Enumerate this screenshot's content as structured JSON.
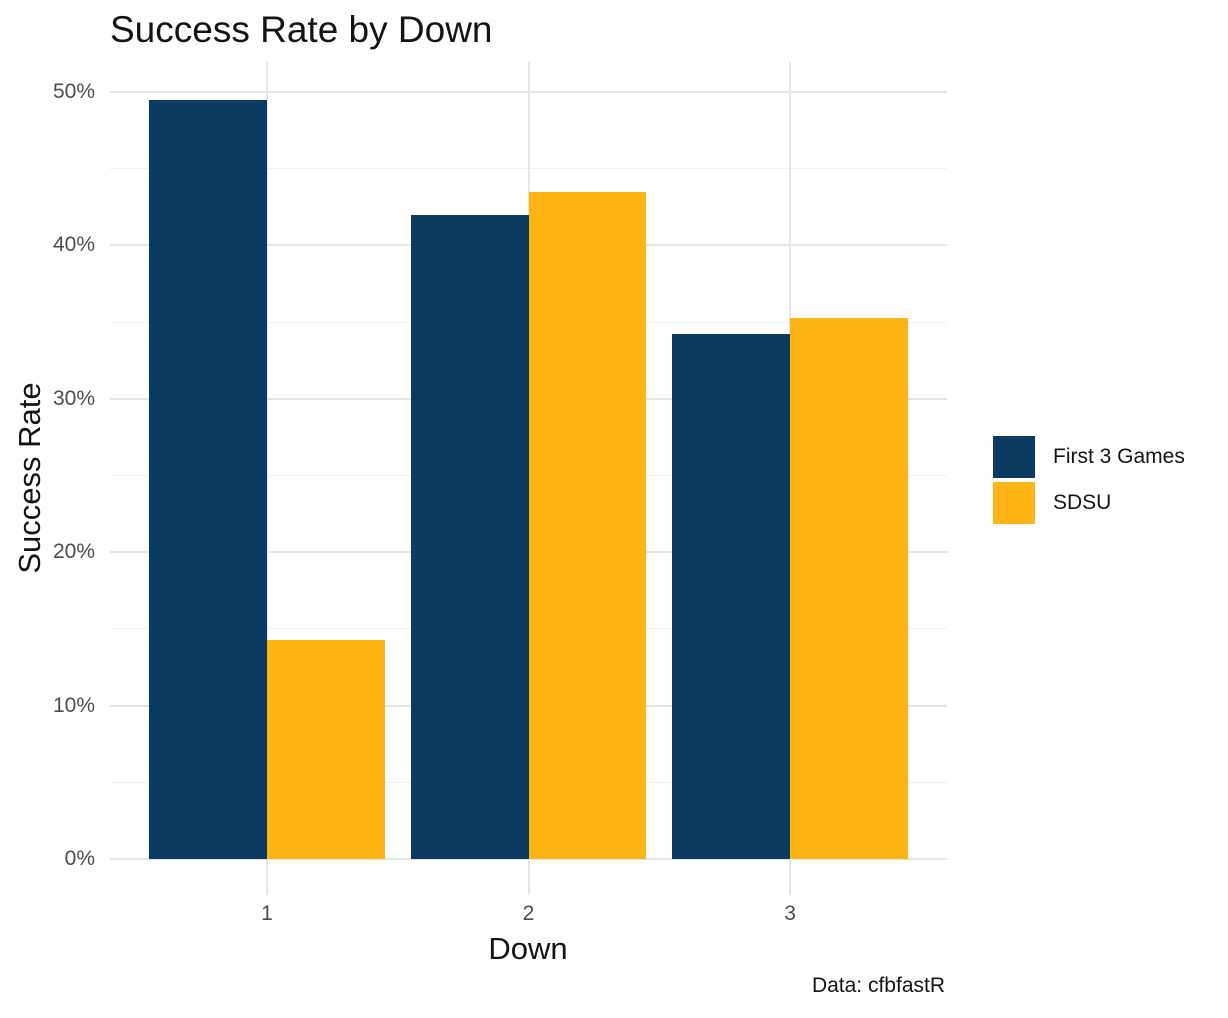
{
  "chart_data": {
    "type": "bar",
    "title": "Success Rate by Down",
    "xlabel": "Down",
    "ylabel": "Success Rate",
    "caption": "Data: cfbfastR",
    "categories": [
      "1",
      "2",
      "3"
    ],
    "series": [
      {
        "name": "First 3 Games",
        "color": "#0C3A61",
        "values": [
          49.5,
          42.0,
          34.2
        ]
      },
      {
        "name": "SDSU",
        "color": "#FDB414",
        "values": [
          14.3,
          43.5,
          35.3
        ]
      }
    ],
    "ylim": [
      0,
      50
    ],
    "yticks": [
      0,
      10,
      20,
      30,
      40,
      50
    ],
    "ytick_labels": [
      "0%",
      "10%",
      "20%",
      "30%",
      "40%",
      "50%"
    ],
    "minor_yticks": [
      5,
      15,
      25,
      35,
      45
    ],
    "grid": true,
    "legend_position": "right",
    "bar_layout": "dodged",
    "colors": {
      "background": "#FFFFFF",
      "major_grid": "#E4E4E4",
      "minor_grid": "#F0F0F0",
      "tick_text": "#4D4D4D",
      "text": "#141414"
    }
  }
}
